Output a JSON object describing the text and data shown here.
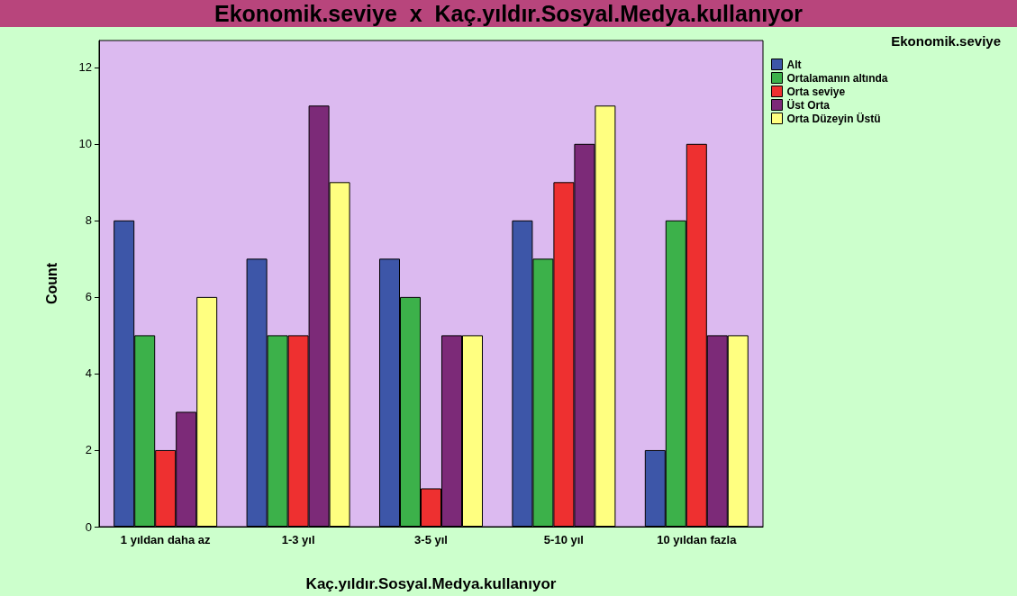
{
  "chart_data": {
    "type": "bar",
    "title": "Ekonomik.seviye  x  Kaç.yıldır.Sosyal.Medya.kullanıyor",
    "xlabel": "Kaç.yıldır.Sosyal.Medya.kullanıyor",
    "ylabel": "Count",
    "legend_title": "Ekonomik.seviye",
    "categories": [
      "1 yıldan daha az",
      "1-3 yıl",
      "3-5 yıl",
      "5-10 yıl",
      "10 yıldan fazla"
    ],
    "series": [
      {
        "name": "Alt",
        "color": "#3d56a8",
        "values": [
          8,
          7,
          7,
          8,
          2
        ]
      },
      {
        "name": "Ortalamanın altında",
        "color": "#3cb14a",
        "values": [
          5,
          5,
          6,
          7,
          8
        ]
      },
      {
        "name": "Orta seviye",
        "color": "#ee3030",
        "values": [
          2,
          5,
          1,
          9,
          10
        ]
      },
      {
        "name": "Üst Orta",
        "color": "#7c2a78",
        "values": [
          3,
          11,
          5,
          10,
          5
        ]
      },
      {
        "name": "Orta Düzeyin Üstü",
        "color": "#ffff80",
        "values": [
          6,
          9,
          5,
          11,
          5
        ]
      }
    ],
    "ylim": [
      0,
      12.7
    ],
    "yticks": [
      0,
      2,
      4,
      6,
      8,
      10,
      12
    ],
    "grid": false,
    "legend": "top right"
  }
}
